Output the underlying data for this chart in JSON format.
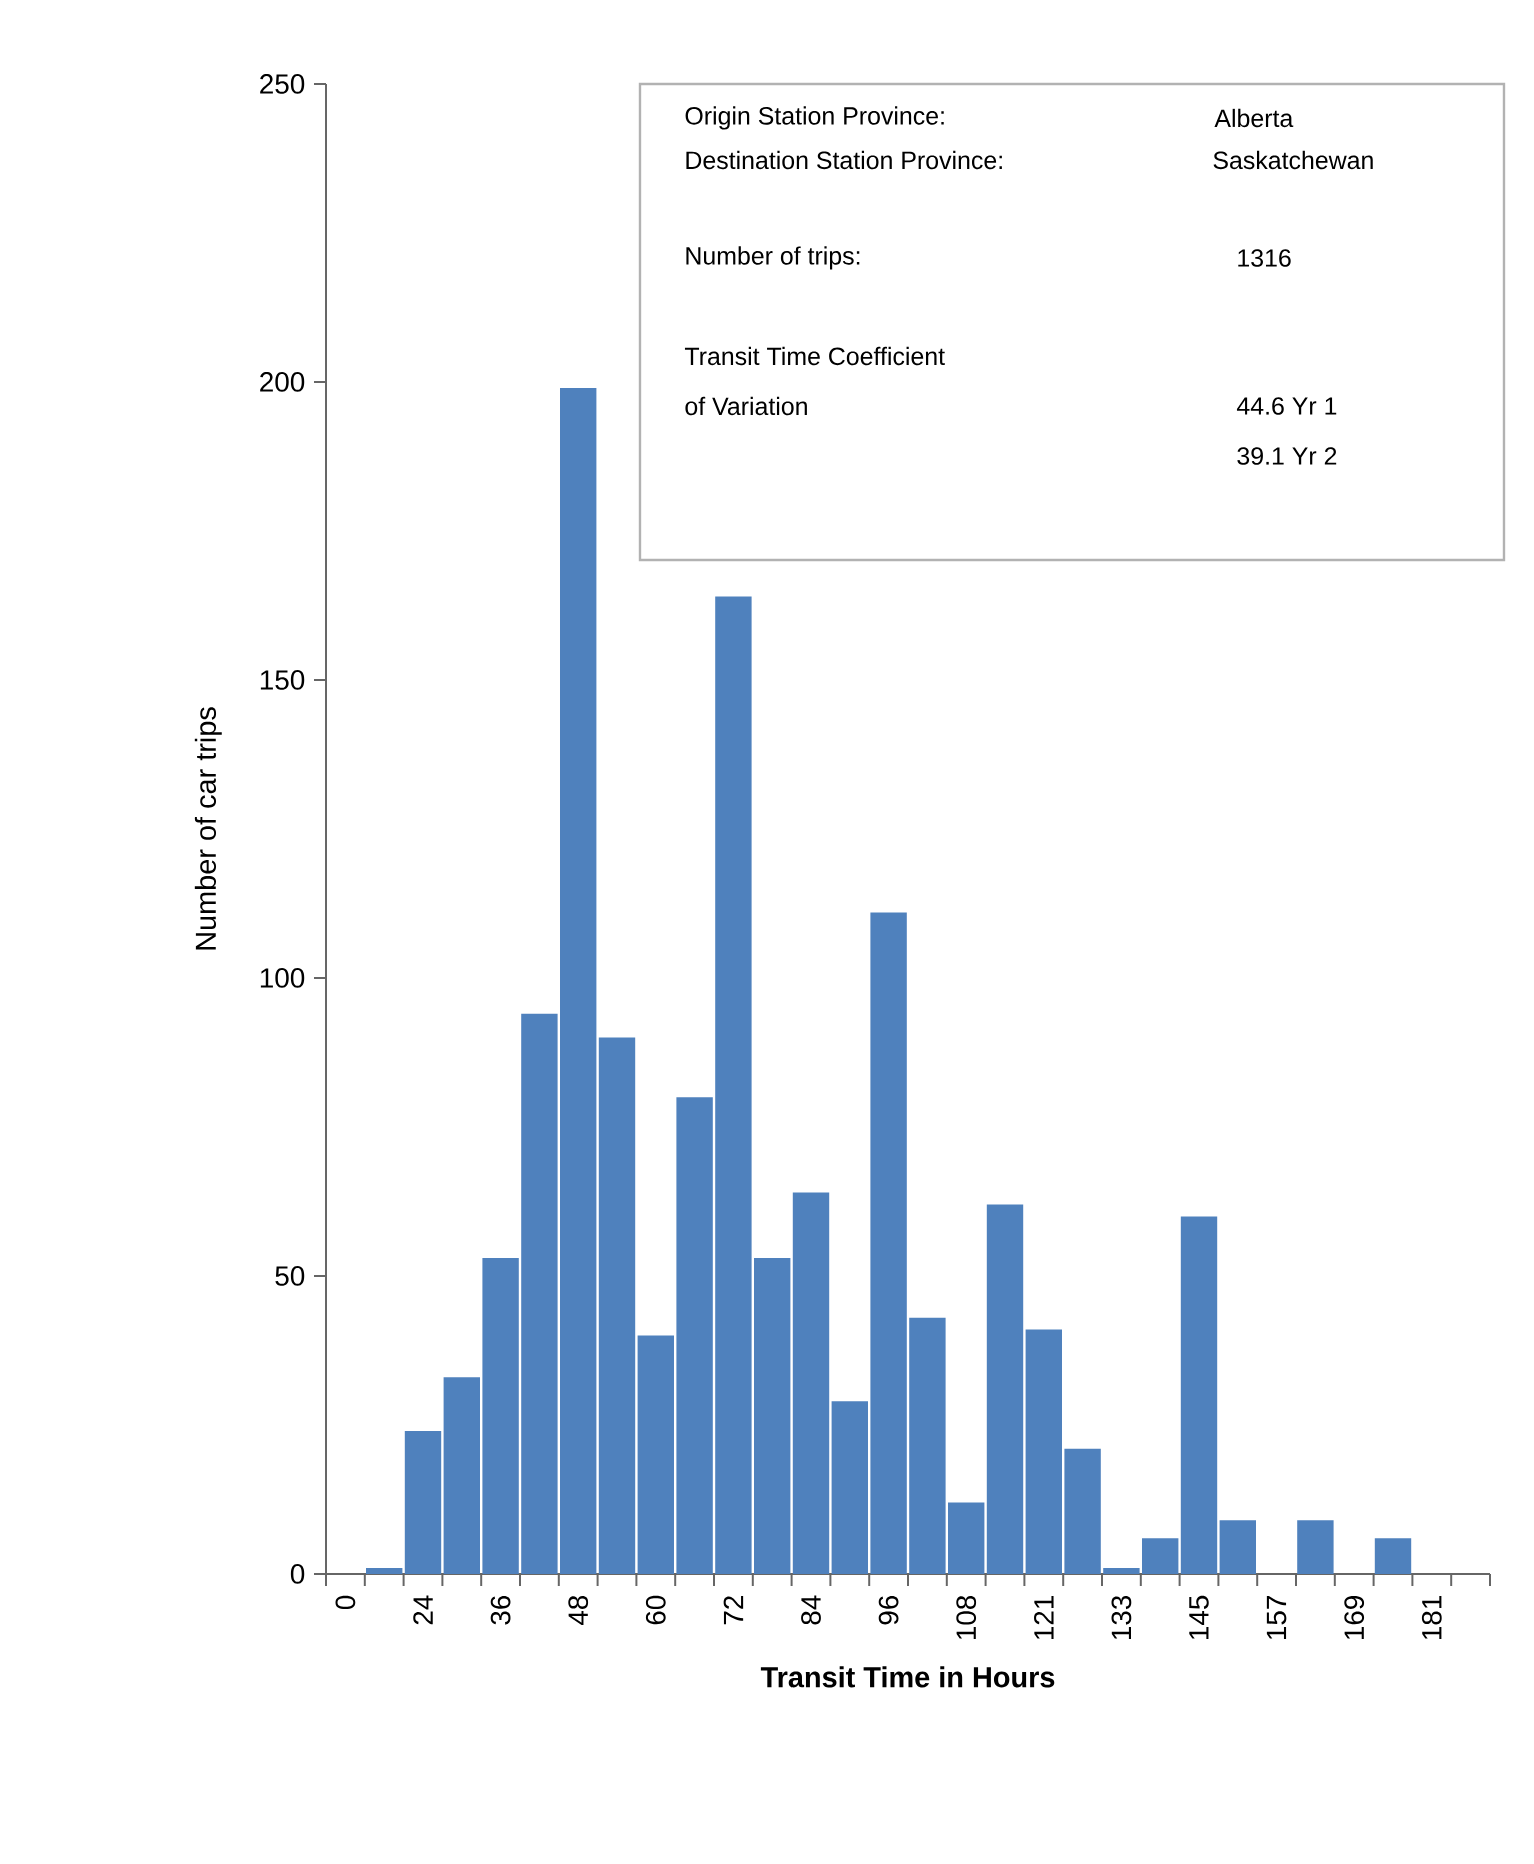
{
  "chart_data": {
    "type": "bar",
    "xlabel": "Transit Time in Hours",
    "ylabel": "Number of car trips",
    "categories": [
      "0",
      null,
      "24",
      null,
      "36",
      null,
      "48",
      null,
      "60",
      null,
      "72",
      null,
      "84",
      null,
      "96",
      null,
      "108",
      null,
      "121",
      null,
      "133",
      null,
      "145",
      null,
      "157",
      null,
      "169",
      null,
      "181",
      null
    ],
    "values": [
      0,
      1,
      24,
      33,
      53,
      94,
      199,
      90,
      40,
      80,
      164,
      53,
      64,
      29,
      111,
      43,
      12,
      62,
      41,
      21,
      1,
      6,
      60,
      9,
      0,
      9,
      0,
      6,
      0,
      0
    ],
    "color": "#4f81bd",
    "ylim": [
      0,
      250
    ],
    "yticks": [
      0,
      50,
      100,
      150,
      200,
      250
    ],
    "annotations": [
      "Origin Station Province:",
      "Alberta",
      "Destination Station Province:",
      "Saskatchewan",
      "Number of trips:",
      "1316",
      "Transit Time Coefficient",
      "of Variation",
      "44.6   Yr 1",
      "39.1   Yr 2"
    ]
  }
}
